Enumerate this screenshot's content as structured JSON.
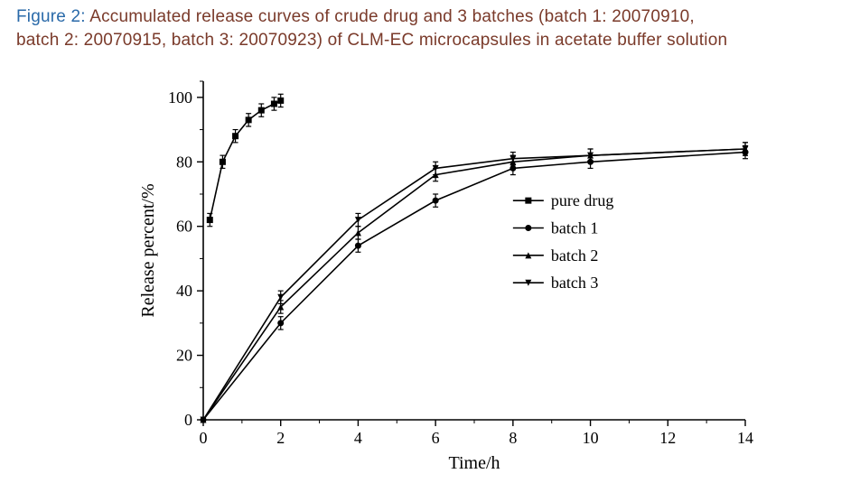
{
  "caption": {
    "figure_label": "Figure 2:",
    "text_line1_rest": " Accumulated release curves of crude drug and 3 batches (batch 1: 20070910,",
    "text_line2": "batch 2: 20070915, batch 3: 20070923) of CLM-EC microcapsules in acetate buffer solution",
    "label_color": "#2a6aa9",
    "text_color": "#7a3a2a",
    "font_size_pt": 14
  },
  "chart": {
    "type": "line",
    "background_color": "#ffffff",
    "axis_color": "#000000",
    "tick_color": "#000000",
    "line_color": "#000000",
    "text_color": "#000000",
    "line_width": 1.6,
    "marker_stroke_width": 1.6,
    "marker_size": 7,
    "error_bar_color": "#000000",
    "error_cap_width": 6,
    "xlabel": "Time/h",
    "ylabel": "Release percent/%",
    "label_fontsize": 20,
    "tick_fontsize": 18,
    "xlim": [
      0,
      14
    ],
    "ylim": [
      0,
      105
    ],
    "xticks": [
      0,
      2,
      4,
      6,
      8,
      10,
      12,
      14
    ],
    "yticks": [
      0,
      20,
      40,
      60,
      80,
      100
    ],
    "legend": {
      "x": 8.0,
      "y_top": 68,
      "row_gap": 8.5,
      "box_border": "#000000",
      "items": [
        {
          "label": "pure drug",
          "marker": "square"
        },
        {
          "label": "batch 1",
          "marker": "circle"
        },
        {
          "label": "batch 2",
          "marker": "triangle_up"
        },
        {
          "label": "batch 3",
          "marker": "triangle_down"
        }
      ],
      "fontsize": 18
    },
    "series": [
      {
        "name": "pure drug",
        "marker": "square",
        "x": [
          0.17,
          0.5,
          0.83,
          1.17,
          1.5,
          1.83,
          2.0
        ],
        "y": [
          62,
          80,
          88,
          93,
          96,
          98,
          99
        ],
        "yerr": [
          2.0,
          2.0,
          2.0,
          2.0,
          2.0,
          2.0,
          2.0
        ]
      },
      {
        "name": "batch 1",
        "marker": "circle",
        "x": [
          0,
          2,
          4,
          6,
          8,
          10,
          14
        ],
        "y": [
          0,
          30,
          54,
          68,
          78,
          80,
          83
        ],
        "yerr": [
          0,
          2.0,
          2.0,
          2.0,
          2.0,
          2.0,
          2.0
        ]
      },
      {
        "name": "batch 2",
        "marker": "triangle_up",
        "x": [
          0,
          2,
          4,
          6,
          8,
          10,
          14
        ],
        "y": [
          0,
          35,
          58,
          76,
          80,
          82,
          84
        ],
        "yerr": [
          0,
          2.0,
          2.0,
          2.0,
          2.0,
          2.0,
          2.0
        ]
      },
      {
        "name": "batch 3",
        "marker": "triangle_down",
        "x": [
          0,
          2,
          4,
          6,
          8,
          10,
          14
        ],
        "y": [
          0,
          38,
          62,
          78,
          81,
          82,
          84
        ],
        "yerr": [
          0,
          2.0,
          2.0,
          2.0,
          2.0,
          2.0,
          2.0
        ]
      }
    ]
  }
}
